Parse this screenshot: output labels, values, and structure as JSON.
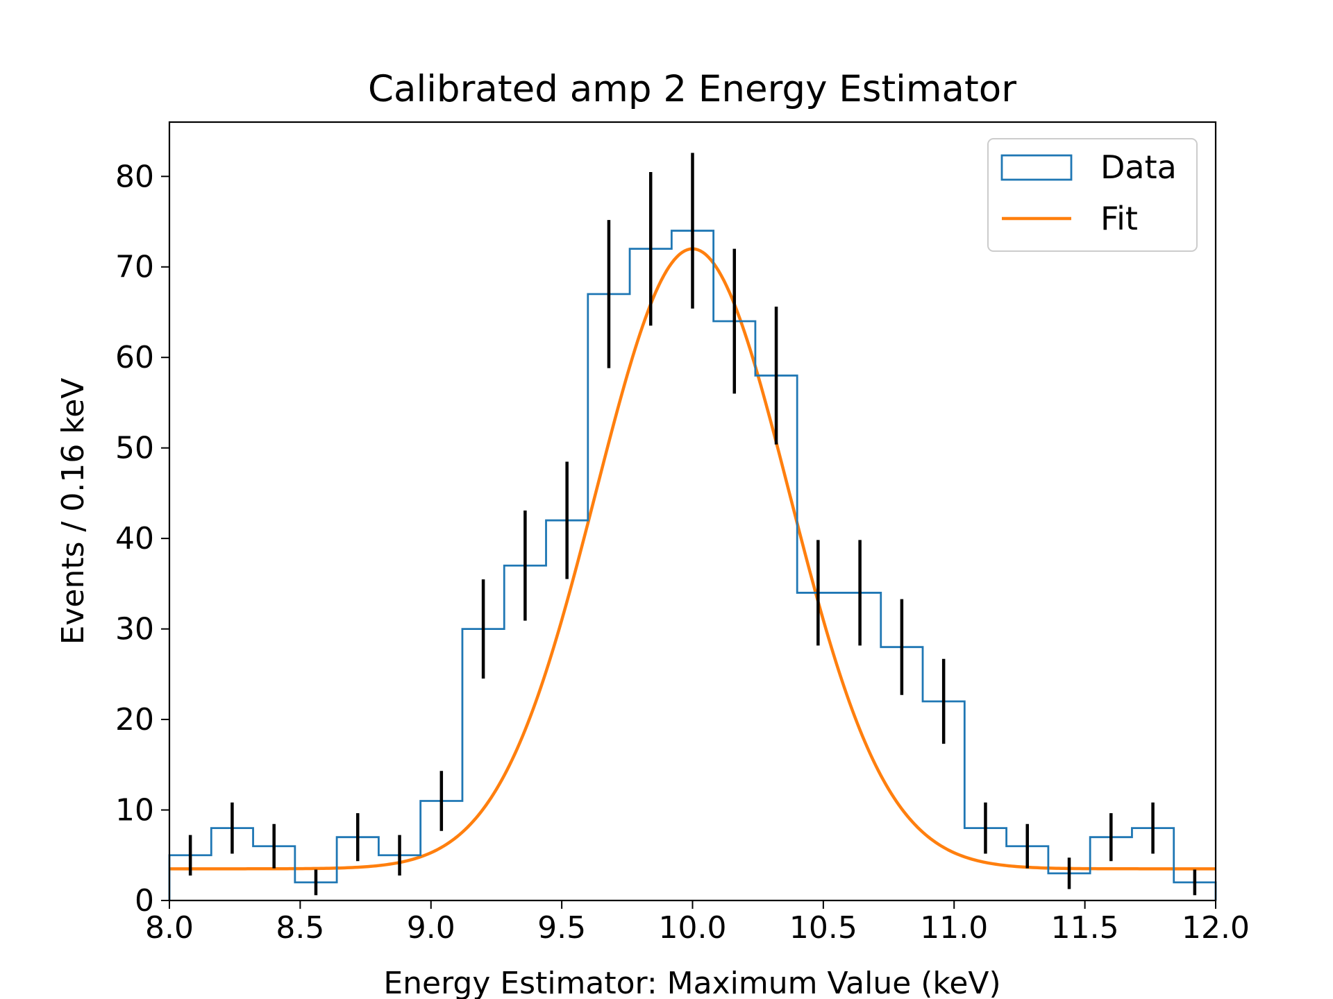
{
  "chart_data": {
    "type": "histogram",
    "title": "Calibrated amp 2 Energy Estimator",
    "xlabel": "Energy Estimator: Maximum Value (keV)",
    "ylabel": "Events / 0.16 keV",
    "xlim": [
      8.0,
      12.0
    ],
    "ylim": [
      0,
      86
    ],
    "xticks": [
      8.0,
      8.5,
      9.0,
      9.5,
      10.0,
      10.5,
      11.0,
      11.5,
      12.0
    ],
    "xtick_labels": [
      "8.0",
      "8.5",
      "9.0",
      "9.5",
      "10.0",
      "10.5",
      "11.0",
      "11.5",
      "12.0"
    ],
    "yticks": [
      0,
      10,
      20,
      30,
      40,
      50,
      60,
      70,
      80
    ],
    "ytick_labels": [
      "0",
      "10",
      "20",
      "30",
      "40",
      "50",
      "60",
      "70",
      "80"
    ],
    "grid": false,
    "legend_position": "top-right",
    "series": [
      {
        "name": "Data",
        "kind": "step-histogram",
        "color": "#1f77b4",
        "bin_edges": [
          8.0,
          8.16,
          8.32,
          8.48,
          8.64,
          8.8,
          8.96,
          9.12,
          9.28,
          9.44,
          9.6,
          9.76,
          9.92,
          10.08,
          10.24,
          10.4,
          10.56,
          10.72,
          10.88,
          11.04,
          11.2,
          11.36,
          11.52,
          11.68,
          11.84,
          12.0
        ],
        "counts": [
          5,
          8,
          6,
          2,
          7,
          5,
          11,
          30,
          37,
          42,
          67,
          72,
          74,
          64,
          58,
          34,
          34,
          28,
          22,
          8,
          6,
          3,
          7,
          8,
          2
        ]
      },
      {
        "name": "Fit",
        "kind": "gaussian",
        "color": "#ff7f0e",
        "amplitude": 68.5,
        "mean": 10.0,
        "sigma": 0.37,
        "offset": 3.5
      }
    ],
    "error_bars": {
      "color": "#000000",
      "centers": [
        8.08,
        8.24,
        8.4,
        8.56,
        8.72,
        8.88,
        9.04,
        9.2,
        9.36,
        9.52,
        9.68,
        9.84,
        10.0,
        10.16,
        10.32,
        10.48,
        10.64,
        10.8,
        10.96,
        11.12,
        11.28,
        11.44,
        11.6,
        11.76,
        11.92
      ],
      "values": [
        5,
        8,
        6,
        2,
        7,
        5,
        11,
        30,
        37,
        42,
        67,
        72,
        74,
        64,
        58,
        34,
        34,
        28,
        22,
        8,
        6,
        3,
        7,
        8,
        2
      ]
    }
  }
}
